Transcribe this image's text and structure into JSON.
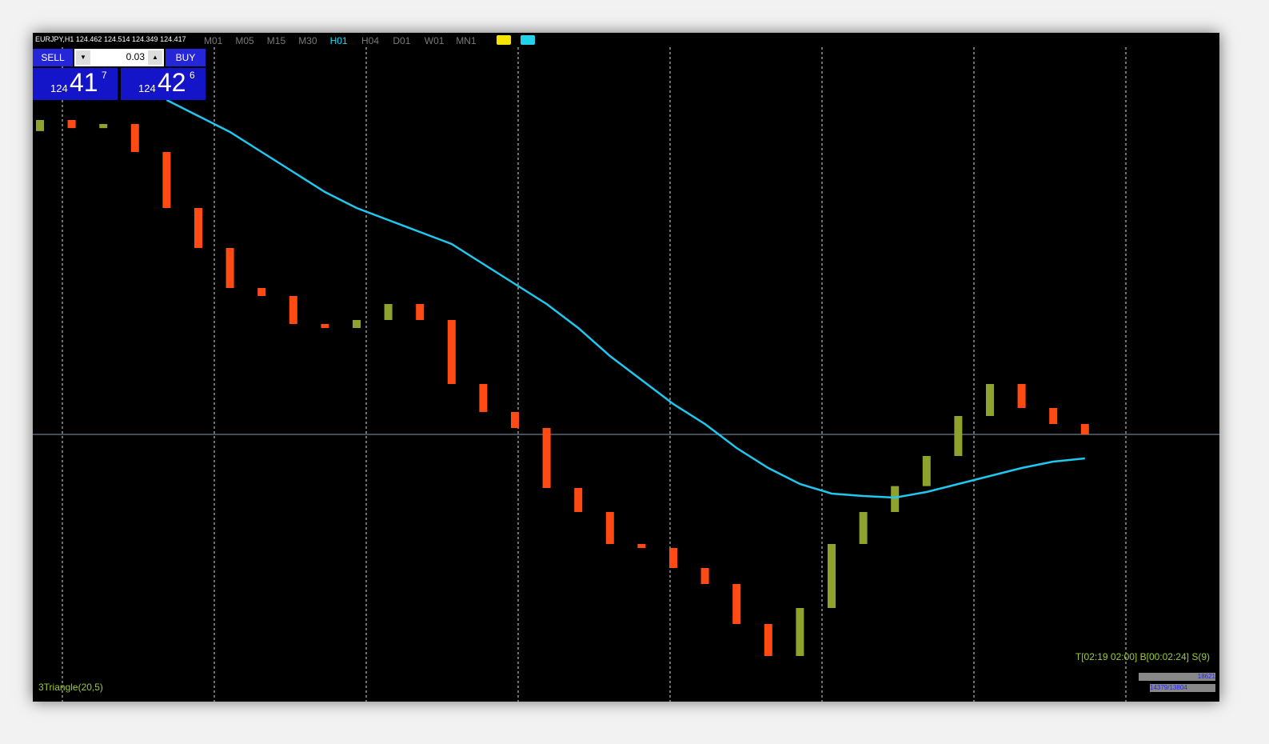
{
  "header": {
    "symbol": "EURJPY,H1",
    "ohlc": [
      124.462,
      124.514,
      124.349,
      124.417
    ]
  },
  "timeframes": [
    {
      "label": "M01",
      "color": "#7a7a7a"
    },
    {
      "label": "M05",
      "color": "#7a7a7a"
    },
    {
      "label": "M15",
      "color": "#7a7a7a"
    },
    {
      "label": "M30",
      "color": "#7a7a7a"
    },
    {
      "label": "H01",
      "color": "#00e5ff"
    },
    {
      "label": "H04",
      "color": "#7a7a7a"
    },
    {
      "label": "D01",
      "color": "#7a7a7a"
    },
    {
      "label": "W01",
      "color": "#7a7a7a"
    },
    {
      "label": "MN1",
      "color": "#7a7a7a"
    }
  ],
  "trade_panel": {
    "sell": "SELL",
    "buy": "BUY",
    "lot": "0.03",
    "bid": {
      "big": "124",
      "main": "41",
      "frac": "7"
    },
    "ask": {
      "big": "124",
      "main": "42",
      "frac": "6"
    }
  },
  "chart_data": {
    "type": "candlestick",
    "open": [
      127.45,
      127.561,
      127.48,
      127.521,
      127.241,
      126.681,
      126.281,
      125.881,
      125.801,
      125.521,
      125.481,
      125.561,
      125.721,
      125.561,
      124.921,
      124.641,
      124.481,
      123.881,
      123.641,
      123.321,
      123.281,
      123.081,
      122.921,
      122.521,
      122.201,
      122.681,
      123.321,
      123.641,
      123.9,
      124.201,
      124.601,
      124.921,
      124.681,
      124.521
    ],
    "close": [
      127.561,
      127.48,
      127.521,
      127.241,
      126.681,
      126.281,
      125.881,
      125.801,
      125.521,
      125.481,
      125.561,
      125.721,
      125.561,
      124.921,
      124.641,
      124.481,
      123.881,
      123.641,
      123.321,
      123.281,
      123.081,
      122.921,
      122.521,
      122.201,
      122.681,
      123.321,
      123.641,
      123.9,
      124.201,
      124.601,
      124.921,
      124.681,
      124.521,
      124.417
    ],
    "ma": [
      null,
      null,
      null,
      null,
      127.761,
      127.601,
      127.441,
      127.241,
      127.041,
      126.841,
      126.681,
      126.561,
      126.441,
      126.321,
      126.121,
      125.921,
      125.721,
      125.481,
      125.201,
      124.961,
      124.721,
      124.521,
      124.281,
      124.081,
      123.921,
      123.825,
      123.801,
      123.785,
      123.841,
      123.921,
      124.001,
      124.081,
      124.145,
      124.177
    ],
    "ylim": [
      121.801,
      128.401
    ],
    "up_color": "#8ea22e",
    "down_color": "#ff4a14",
    "ma_color": "#1ec8f0",
    "price_line_color": "#8a9ab0"
  },
  "indicator": "3Triangle(20,5)",
  "timer": "T[02:19 02:00] B[00:02:24] S(9)",
  "status": {
    "volume": "18621",
    "ratio": "14379/13804"
  }
}
